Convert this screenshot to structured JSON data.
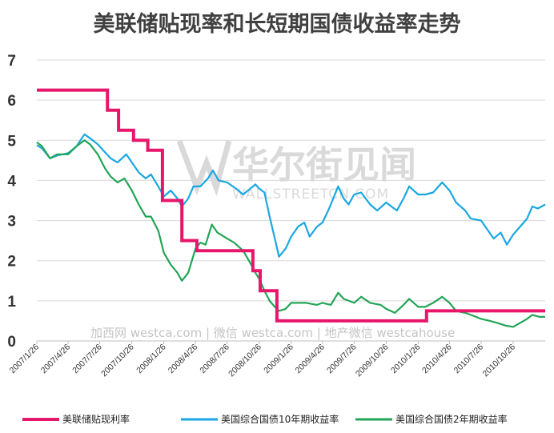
{
  "chart_data": {
    "type": "line",
    "title": "美联储贴现率和长短期国债收益率走势",
    "xlabel": "",
    "ylabel": "",
    "ylim": [
      0,
      7
    ],
    "yticks": [
      "0",
      "1",
      "2",
      "3",
      "4",
      "5",
      "6",
      "7"
    ],
    "xlim": [
      "2007-01-26",
      "2011-01-26"
    ],
    "x_ticks": [
      "2007/1/26",
      "2007/4/26",
      "2007/7/26",
      "2007/10/26",
      "2008/1/26",
      "2008/4/26",
      "2008/7/26",
      "2008/10/26",
      "2009/1/26",
      "2009/4/26",
      "2009/7/26",
      "2009/10/26",
      "2010/1/26",
      "2010/4/26",
      "2010/7/26",
      "2010/10/26"
    ],
    "legend_position": "bottom",
    "grid": "horizontal",
    "series": [
      {
        "name": "美联储贴现利率",
        "color": "#e8166b",
        "step": true,
        "points": [
          [
            "2007-01-26",
            6.25
          ],
          [
            "2007-08-17",
            5.75
          ],
          [
            "2007-09-18",
            5.25
          ],
          [
            "2007-10-31",
            5.0
          ],
          [
            "2007-12-11",
            4.75
          ],
          [
            "2008-01-22",
            3.5
          ],
          [
            "2008-03-18",
            2.5
          ],
          [
            "2008-04-30",
            2.25
          ],
          [
            "2008-10-08",
            1.75
          ],
          [
            "2008-10-29",
            1.25
          ],
          [
            "2008-12-16",
            0.5
          ],
          [
            "2010-02-19",
            0.75
          ],
          [
            "2011-01-26",
            0.75
          ]
        ]
      },
      {
        "name": "美国综合国债10年期收益率",
        "color": "#1aa7e1",
        "points": [
          [
            "2007-01-26",
            4.88
          ],
          [
            "2007-02-10",
            4.8
          ],
          [
            "2007-03-05",
            4.55
          ],
          [
            "2007-03-25",
            4.62
          ],
          [
            "2007-04-26",
            4.68
          ],
          [
            "2007-05-20",
            4.85
          ],
          [
            "2007-06-12",
            5.15
          ],
          [
            "2007-06-28",
            5.05
          ],
          [
            "2007-07-20",
            4.9
          ],
          [
            "2007-08-10",
            4.7
          ],
          [
            "2007-08-26",
            4.55
          ],
          [
            "2007-09-15",
            4.45
          ],
          [
            "2007-10-10",
            4.65
          ],
          [
            "2007-10-26",
            4.45
          ],
          [
            "2007-11-15",
            4.2
          ],
          [
            "2007-12-05",
            4.05
          ],
          [
            "2007-12-20",
            4.15
          ],
          [
            "2008-01-10",
            3.85
          ],
          [
            "2008-01-26",
            3.6
          ],
          [
            "2008-02-15",
            3.75
          ],
          [
            "2008-03-05",
            3.55
          ],
          [
            "2008-03-18",
            3.35
          ],
          [
            "2008-04-05",
            3.55
          ],
          [
            "2008-04-20",
            3.85
          ],
          [
            "2008-05-10",
            3.85
          ],
          [
            "2008-06-01",
            4.05
          ],
          [
            "2008-06-15",
            4.25
          ],
          [
            "2008-07-01",
            4.0
          ],
          [
            "2008-07-26",
            3.95
          ],
          [
            "2008-08-20",
            3.8
          ],
          [
            "2008-09-10",
            3.65
          ],
          [
            "2008-10-01",
            3.8
          ],
          [
            "2008-10-15",
            3.9
          ],
          [
            "2008-10-26",
            3.8
          ],
          [
            "2008-11-10",
            3.7
          ],
          [
            "2008-11-25",
            3.1
          ],
          [
            "2008-12-10",
            2.55
          ],
          [
            "2008-12-22",
            2.1
          ],
          [
            "2009-01-10",
            2.3
          ],
          [
            "2009-01-26",
            2.6
          ],
          [
            "2009-02-15",
            2.85
          ],
          [
            "2009-03-05",
            2.95
          ],
          [
            "2009-03-20",
            2.6
          ],
          [
            "2009-04-10",
            2.85
          ],
          [
            "2009-04-26",
            2.95
          ],
          [
            "2009-05-15",
            3.3
          ],
          [
            "2009-06-10",
            3.85
          ],
          [
            "2009-06-26",
            3.55
          ],
          [
            "2009-07-10",
            3.4
          ],
          [
            "2009-07-26",
            3.65
          ],
          [
            "2009-08-15",
            3.7
          ],
          [
            "2009-09-10",
            3.4
          ],
          [
            "2009-09-30",
            3.25
          ],
          [
            "2009-10-26",
            3.45
          ],
          [
            "2009-11-10",
            3.35
          ],
          [
            "2009-11-26",
            3.25
          ],
          [
            "2009-12-15",
            3.55
          ],
          [
            "2009-12-31",
            3.85
          ],
          [
            "2010-01-26",
            3.65
          ],
          [
            "2010-02-15",
            3.65
          ],
          [
            "2010-03-10",
            3.7
          ],
          [
            "2010-04-05",
            3.95
          ],
          [
            "2010-04-26",
            3.75
          ],
          [
            "2010-05-15",
            3.45
          ],
          [
            "2010-06-10",
            3.25
          ],
          [
            "2010-06-26",
            3.05
          ],
          [
            "2010-07-26",
            3.0
          ],
          [
            "2010-08-15",
            2.75
          ],
          [
            "2010-08-31",
            2.55
          ],
          [
            "2010-09-20",
            2.7
          ],
          [
            "2010-10-08",
            2.4
          ],
          [
            "2010-10-26",
            2.65
          ],
          [
            "2010-11-15",
            2.85
          ],
          [
            "2010-12-05",
            3.05
          ],
          [
            "2010-12-20",
            3.35
          ],
          [
            "2011-01-05",
            3.3
          ],
          [
            "2011-01-26",
            3.4
          ]
        ]
      },
      {
        "name": "美国综合国债2年期收益率",
        "color": "#22a556",
        "points": [
          [
            "2007-01-26",
            4.95
          ],
          [
            "2007-02-10",
            4.85
          ],
          [
            "2007-03-05",
            4.55
          ],
          [
            "2007-03-25",
            4.65
          ],
          [
            "2007-04-26",
            4.65
          ],
          [
            "2007-05-20",
            4.85
          ],
          [
            "2007-06-12",
            5.0
          ],
          [
            "2007-06-28",
            4.9
          ],
          [
            "2007-07-20",
            4.65
          ],
          [
            "2007-08-10",
            4.3
          ],
          [
            "2007-08-26",
            4.1
          ],
          [
            "2007-09-15",
            3.95
          ],
          [
            "2007-10-05",
            4.05
          ],
          [
            "2007-10-26",
            3.75
          ],
          [
            "2007-11-15",
            3.4
          ],
          [
            "2007-12-05",
            3.1
          ],
          [
            "2007-12-20",
            3.1
          ],
          [
            "2008-01-10",
            2.75
          ],
          [
            "2008-01-26",
            2.2
          ],
          [
            "2008-02-15",
            1.9
          ],
          [
            "2008-03-05",
            1.7
          ],
          [
            "2008-03-18",
            1.5
          ],
          [
            "2008-04-05",
            1.7
          ],
          [
            "2008-04-26",
            2.3
          ],
          [
            "2008-05-10",
            2.45
          ],
          [
            "2008-05-25",
            2.4
          ],
          [
            "2008-06-12",
            2.9
          ],
          [
            "2008-06-28",
            2.7
          ],
          [
            "2008-07-26",
            2.55
          ],
          [
            "2008-08-15",
            2.45
          ],
          [
            "2008-09-10",
            2.25
          ],
          [
            "2008-09-30",
            1.95
          ],
          [
            "2008-10-15",
            1.7
          ],
          [
            "2008-10-26",
            1.55
          ],
          [
            "2008-11-10",
            1.25
          ],
          [
            "2008-11-25",
            1.0
          ],
          [
            "2008-12-10",
            0.85
          ],
          [
            "2008-12-22",
            0.75
          ],
          [
            "2009-01-10",
            0.8
          ],
          [
            "2009-01-26",
            0.95
          ],
          [
            "2009-02-15",
            0.95
          ],
          [
            "2009-03-10",
            0.95
          ],
          [
            "2009-04-10",
            0.9
          ],
          [
            "2009-04-26",
            0.95
          ],
          [
            "2009-05-20",
            0.9
          ],
          [
            "2009-06-10",
            1.2
          ],
          [
            "2009-06-26",
            1.05
          ],
          [
            "2009-07-26",
            0.95
          ],
          [
            "2009-08-15",
            1.1
          ],
          [
            "2009-09-10",
            0.95
          ],
          [
            "2009-10-10",
            0.9
          ],
          [
            "2009-10-26",
            0.8
          ],
          [
            "2009-11-20",
            0.7
          ],
          [
            "2009-12-15",
            0.9
          ],
          [
            "2009-12-31",
            1.05
          ],
          [
            "2010-01-26",
            0.85
          ],
          [
            "2010-02-15",
            0.85
          ],
          [
            "2010-03-10",
            0.95
          ],
          [
            "2010-04-05",
            1.1
          ],
          [
            "2010-04-26",
            0.95
          ],
          [
            "2010-05-15",
            0.75
          ],
          [
            "2010-06-10",
            0.7
          ],
          [
            "2010-06-26",
            0.65
          ],
          [
            "2010-07-26",
            0.55
          ],
          [
            "2010-08-20",
            0.5
          ],
          [
            "2010-09-10",
            0.45
          ],
          [
            "2010-10-05",
            0.38
          ],
          [
            "2010-10-26",
            0.35
          ],
          [
            "2010-11-15",
            0.45
          ],
          [
            "2010-12-05",
            0.55
          ],
          [
            "2010-12-20",
            0.65
          ],
          [
            "2011-01-10",
            0.6
          ],
          [
            "2011-01-26",
            0.6
          ]
        ]
      }
    ],
    "annotations": {
      "watermark_cn": "华尔街见闻",
      "watermark_en": "WALLSTREETCN.COM",
      "source_text": "加西网 westca.com | 微信 westca.com | 地产微信 westcahouse"
    }
  }
}
